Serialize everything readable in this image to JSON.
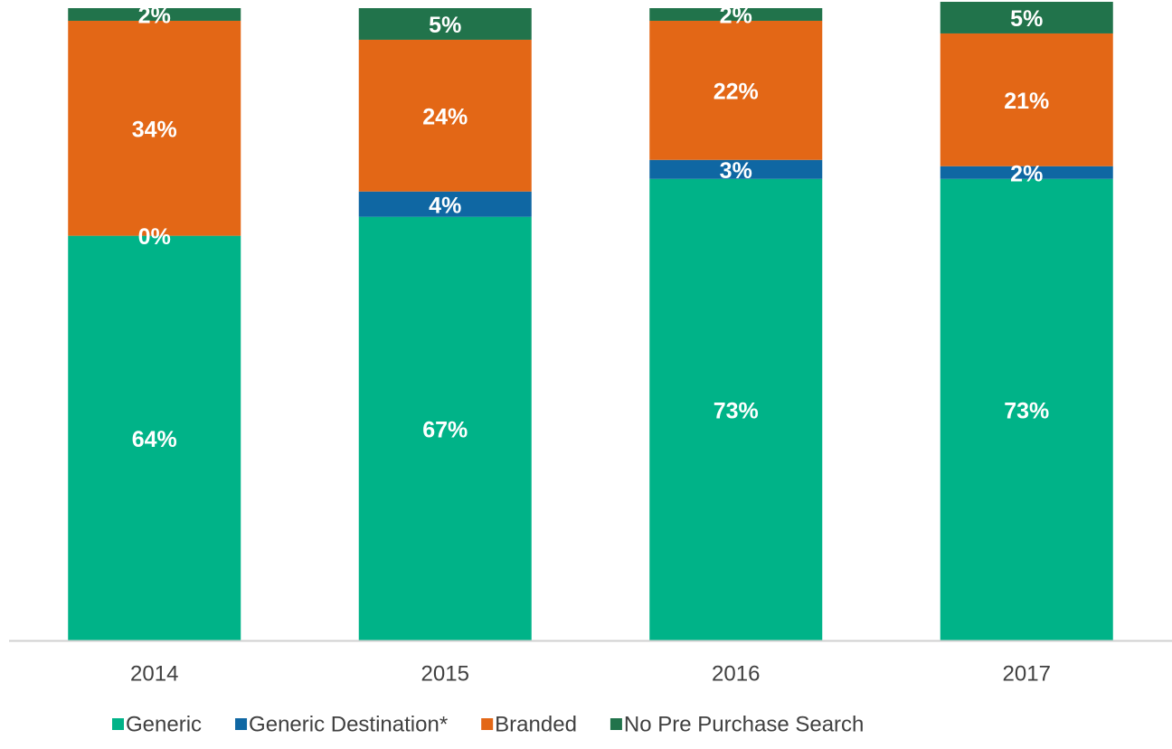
{
  "chart_data": {
    "type": "stacked_bar",
    "categories": [
      "2014",
      "2015",
      "2016",
      "2017"
    ],
    "ylim": [
      0,
      100
    ],
    "legend": "bottom",
    "series": [
      {
        "name": "Generic",
        "color": "#00b388",
        "values": [
          64,
          67,
          73,
          73
        ],
        "value_labels": [
          "64%",
          "67%",
          "73%",
          "73%"
        ]
      },
      {
        "name": "Generic Destination*",
        "color": "#0f67a3",
        "values": [
          0,
          4,
          3,
          2
        ],
        "value_labels": [
          "0%",
          "4%",
          "3%",
          "2%"
        ]
      },
      {
        "name": "Branded",
        "color": "#e36716",
        "values": [
          34,
          24,
          22,
          21
        ],
        "value_labels": [
          "34%",
          "24%",
          "22%",
          "21%"
        ]
      },
      {
        "name": "No Pre Purchase Search",
        "color": "#21734b",
        "values": [
          2,
          5,
          2,
          5
        ],
        "value_labels": [
          "2%",
          "5%",
          "2%",
          "5%"
        ]
      }
    ]
  }
}
